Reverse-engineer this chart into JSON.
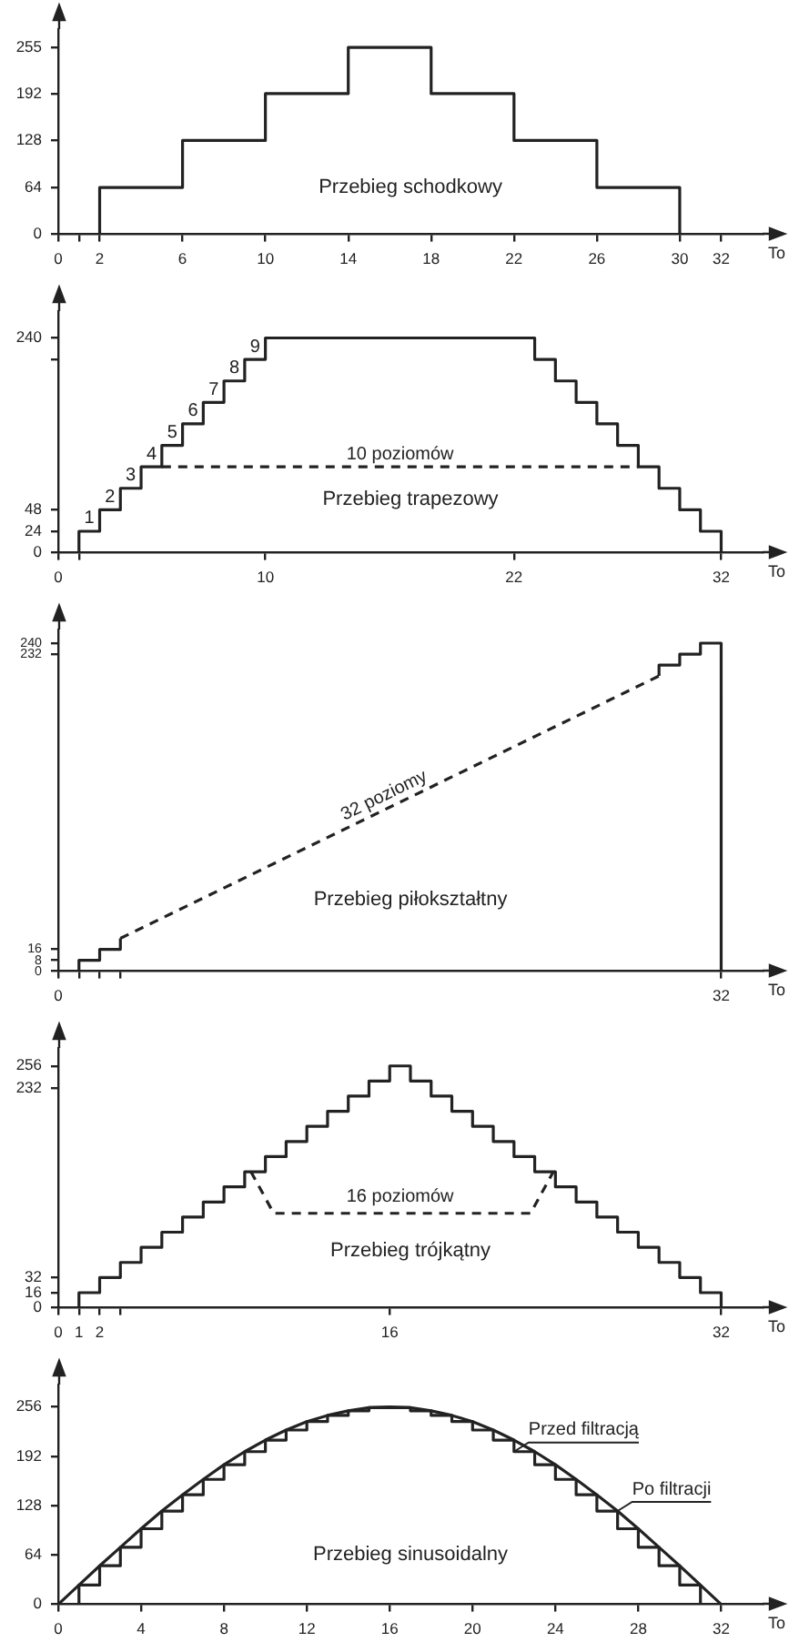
{
  "chart_data": [
    {
      "type": "step",
      "title": "Przebieg schodkowy",
      "xlabel": "To",
      "x": [
        0,
        2,
        6,
        10,
        14,
        18,
        22,
        26,
        30
      ],
      "series": [
        {
          "color": "#222222",
          "values": [
            0,
            64,
            128,
            192,
            255,
            192,
            128,
            64,
            0
          ]
        }
      ],
      "xlim": [
        0,
        34
      ],
      "ylim": [
        0,
        280
      ],
      "xticks": [
        0,
        {
          "value": 1,
          "label": null
        },
        2,
        6,
        10,
        14,
        18,
        22,
        26,
        30,
        32
      ],
      "yticks": [
        0,
        64,
        128,
        192,
        255
      ]
    },
    {
      "type": "step",
      "title": "Przebieg trapezowy",
      "xlabel": "To",
      "series": [
        {
          "color": "#222222",
          "x": [
            0,
            1,
            2,
            3,
            4,
            5,
            6,
            7,
            8,
            9,
            10,
            23,
            24,
            25,
            26,
            27,
            28,
            29,
            30,
            31,
            32
          ],
          "values": [
            0,
            24,
            48,
            72,
            96,
            120,
            144,
            168,
            192,
            216,
            240,
            216,
            192,
            168,
            144,
            120,
            96,
            72,
            48,
            24,
            0
          ]
        },
        {
          "type": "line",
          "line_style": "dashed",
          "color": "#222222",
          "x": [
            5,
            28
          ],
          "values": [
            96,
            96
          ]
        }
      ],
      "xlim": [
        0,
        34
      ],
      "ylim": [
        0,
        270
      ],
      "xticks": [
        0,
        {
          "value": 1,
          "label": null
        },
        10,
        22,
        32
      ],
      "yticks": [
        0,
        24,
        48,
        {
          "value": 216,
          "label": null
        },
        240
      ],
      "annotations": [
        {
          "text": "1",
          "x": 1.5,
          "y": 24
        },
        {
          "text": "2",
          "x": 2.5,
          "y": 48
        },
        {
          "text": "3",
          "x": 3.5,
          "y": 72
        },
        {
          "text": "4",
          "x": 4.5,
          "y": 96
        },
        {
          "text": "5",
          "x": 5.5,
          "y": 120
        },
        {
          "text": "6",
          "x": 6.5,
          "y": 144
        },
        {
          "text": "7",
          "x": 7.5,
          "y": 168
        },
        {
          "text": "8",
          "x": 8.5,
          "y": 192
        },
        {
          "text": "9",
          "x": 9.5,
          "y": 216
        },
        {
          "text": "10 poziomów",
          "x": 16.5,
          "y": 96
        }
      ]
    },
    {
      "type": "step",
      "title": "Przebieg piłokształtny",
      "xlabel": "To",
      "series": [
        {
          "color": "#222222",
          "x": [
            0,
            1,
            2,
            3
          ],
          "values": [
            0,
            8,
            16,
            24
          ]
        },
        {
          "type": "line",
          "line_style": "dashed",
          "color": "#222222",
          "x": [
            3,
            29
          ],
          "values": [
            24,
            216
          ]
        },
        {
          "color": "#222222",
          "x": [
            29,
            29,
            30,
            31,
            32
          ],
          "values": [
            216,
            224,
            232,
            240,
            0
          ]
        }
      ],
      "xlim": [
        0,
        34
      ],
      "ylim": [
        0,
        250
      ],
      "xticks": [
        0,
        {
          "value": 1,
          "label": null
        },
        {
          "value": 2,
          "label": null
        },
        {
          "value": 3,
          "label": null
        },
        32
      ],
      "yticks": [
        0,
        8,
        16,
        232,
        240
      ],
      "annotations": [
        {
          "text": "32 poziomy",
          "x": 16,
          "y": 120
        }
      ]
    },
    {
      "type": "step",
      "title": "Przebieg trójkątny",
      "xlabel": "To",
      "series": [
        {
          "color": "#222222",
          "x": [
            0,
            1,
            2,
            3,
            4,
            5,
            6,
            7,
            8,
            9,
            10,
            11,
            12,
            13,
            14,
            15,
            16,
            17,
            18,
            19,
            20,
            21,
            22,
            23,
            24,
            25,
            26,
            27,
            28,
            29,
            30,
            31,
            32
          ],
          "values": [
            0,
            16,
            32,
            48,
            64,
            80,
            96,
            112,
            128,
            144,
            160,
            176,
            192,
            208,
            224,
            240,
            256,
            240,
            224,
            208,
            192,
            176,
            160,
            144,
            128,
            112,
            96,
            80,
            64,
            48,
            32,
            16,
            0
          ]
        },
        {
          "type": "line",
          "line_style": "dashed",
          "color": "#222222",
          "x": [
            9.3,
            10.4,
            22.8,
            23.9
          ],
          "values": [
            144,
            100,
            100,
            144
          ]
        }
      ],
      "xlim": [
        0,
        34
      ],
      "ylim": [
        0,
        275
      ],
      "xticks": [
        0,
        1,
        2,
        {
          "value": 3,
          "label": null
        },
        16,
        32
      ],
      "yticks": [
        0,
        16,
        32,
        232,
        256
      ],
      "annotations": [
        {
          "text": "16 poziomów",
          "x": 16.5,
          "y": 104
        }
      ]
    },
    {
      "type": "step",
      "title": "Przebieg sinusoidalny",
      "xlabel": "To",
      "x": [
        0,
        1,
        2,
        3,
        4,
        5,
        6,
        7,
        8,
        9,
        10,
        11,
        12,
        13,
        14,
        15,
        16,
        17,
        18,
        19,
        20,
        21,
        22,
        23,
        24,
        25,
        26,
        27,
        28,
        29,
        30,
        31,
        32
      ],
      "series": [
        {
          "name": "Przed filtracją",
          "color": "#222222",
          "values": [
            0,
            25,
            50,
            74,
            98,
            121,
            142,
            162,
            181,
            198,
            213,
            226,
            237,
            245,
            251,
            255,
            255,
            251,
            245,
            237,
            226,
            213,
            198,
            181,
            162,
            142,
            121,
            98,
            74,
            50,
            25,
            0,
            0
          ]
        },
        {
          "name": "Po filtracji",
          "type": "line",
          "color": "#222222",
          "values": [
            0,
            25,
            50,
            74,
            98,
            121,
            142,
            162,
            181,
            198,
            213,
            226,
            237,
            245,
            251,
            255,
            256,
            255,
            251,
            245,
            237,
            226,
            213,
            198,
            181,
            162,
            142,
            121,
            98,
            74,
            50,
            25,
            0
          ]
        }
      ],
      "xlim": [
        0,
        34
      ],
      "ylim": [
        0,
        285
      ],
      "xticks": [
        0,
        4,
        8,
        12,
        16,
        20,
        24,
        28,
        32
      ],
      "yticks": [
        0,
        64,
        128,
        192,
        256
      ]
    }
  ]
}
